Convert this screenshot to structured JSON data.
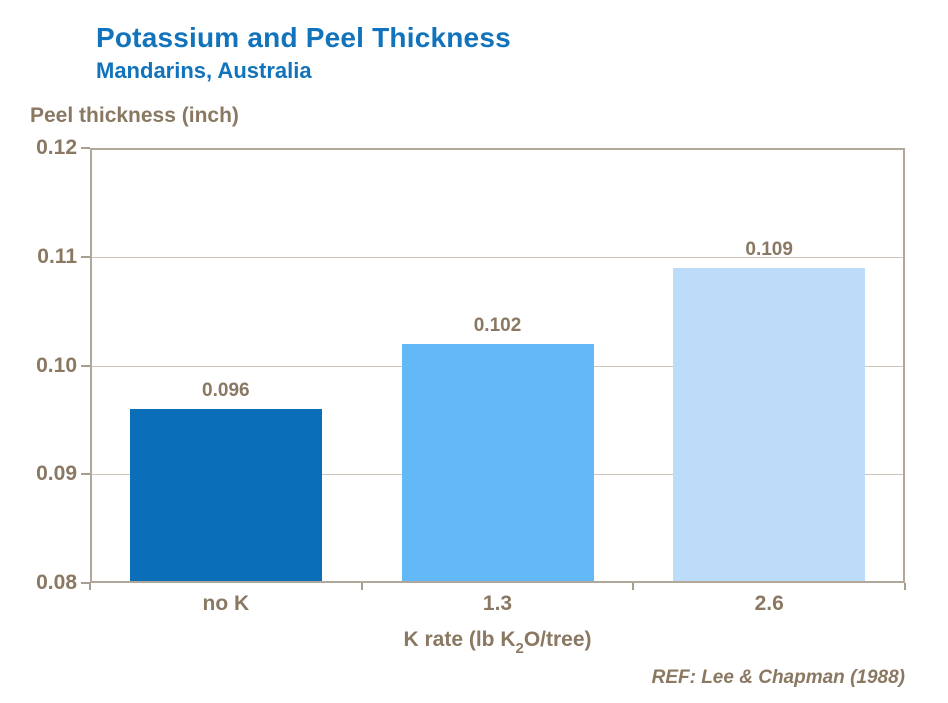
{
  "header": {
    "title": "Potassium and Peel Thickness",
    "subtitle": "Mandarins, Australia"
  },
  "axis": {
    "y_title": "Peel thickness (inch)",
    "x_title_prefix": "K rate (lb K",
    "x_title_sub": "2",
    "x_title_suffix": "O/tree)"
  },
  "footer": {
    "reference": "REF: Lee & Chapman (1988)"
  },
  "colors": {
    "title_blue": "#1173bb",
    "text_brown": "#8a7862",
    "grid": "#cdc5ba",
    "frame": "#b1a79b",
    "tick": "#a79d90"
  },
  "chart_data": {
    "type": "bar",
    "title": "Potassium and Peel Thickness",
    "subtitle": "Mandarins, Australia",
    "xlabel": "K rate (lb K2O/tree)",
    "ylabel": "Peel thickness (inch)",
    "categories": [
      "no K",
      "1.3",
      "2.6"
    ],
    "values": [
      0.096,
      0.102,
      0.109
    ],
    "value_labels": [
      "0.096",
      "0.102",
      "0.109"
    ],
    "bar_colors": [
      "#0a6fb8",
      "#63b9f7",
      "#bcdcf9"
    ],
    "ylim": [
      0.08,
      0.12
    ],
    "yticks": [
      "0.12",
      "0.11",
      "0.10",
      "0.09",
      "0.08"
    ],
    "ytick_values": [
      0.12,
      0.11,
      0.1,
      0.09,
      0.08
    ],
    "grid": true,
    "legend": null,
    "reference": "REF: Lee & Chapman (1988)"
  }
}
